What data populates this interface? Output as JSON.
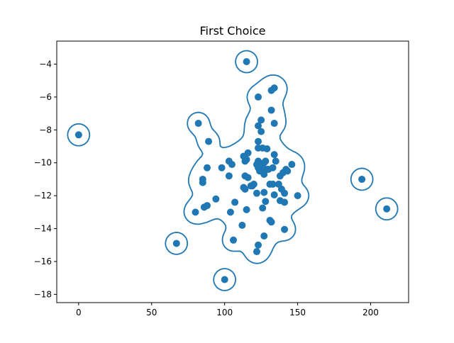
{
  "chart_data": {
    "type": "scatter",
    "title": "First Choice",
    "xlabel": "",
    "ylabel": "",
    "xlim": [
      -15,
      226
    ],
    "ylim": [
      -18.5,
      -2.6
    ],
    "x_ticks": [
      0,
      50,
      100,
      150,
      200
    ],
    "x_tick_labels": [
      "0",
      "50",
      "100",
      "150",
      "200"
    ],
    "y_ticks": [
      -18,
      -16,
      -14,
      -12,
      -10,
      -8,
      -6,
      -4
    ],
    "y_tick_labels": [
      "−18",
      "−16",
      "−14",
      "−12",
      "−10",
      "−8",
      "−6",
      "−4"
    ],
    "grid": false,
    "legend": "none",
    "colors": {
      "points": "#1f77b4",
      "contour": "#1f77b4",
      "axes": "#000000"
    },
    "series": [
      {
        "values": [
          [
            0,
            -8.3
          ],
          [
            115,
            -3.85
          ],
          [
            67,
            -14.9
          ],
          [
            100,
            -17.1
          ],
          [
            194,
            -11.0
          ],
          [
            211,
            -12.8
          ],
          [
            82,
            -7.6
          ],
          [
            89,
            -8.7
          ],
          [
            88,
            -10.3
          ],
          [
            85,
            -11.0
          ],
          [
            85,
            -11.2
          ],
          [
            86,
            -12.7
          ],
          [
            88,
            -12.6
          ],
          [
            80,
            -13.0
          ],
          [
            94,
            -12.2
          ],
          [
            98,
            -10.3
          ],
          [
            103,
            -9.9
          ],
          [
            105,
            -10.1
          ],
          [
            103,
            -10.8
          ],
          [
            104,
            -13.0
          ],
          [
            106,
            -14.7
          ],
          [
            107,
            -12.4
          ],
          [
            112,
            -13.8
          ],
          [
            113,
            -11.5
          ],
          [
            114,
            -11.6
          ],
          [
            115,
            -12.85
          ],
          [
            114,
            -10.8
          ],
          [
            116,
            -10.9
          ],
          [
            113,
            -9.6
          ],
          [
            114,
            -9.9
          ],
          [
            115,
            -9.8
          ],
          [
            116,
            -9.4
          ],
          [
            118,
            -11.4
          ],
          [
            119,
            -11.4
          ],
          [
            120,
            -11.3
          ],
          [
            122,
            -11.85
          ],
          [
            123,
            -9.9
          ],
          [
            122,
            -10.1
          ],
          [
            123,
            -10.3
          ],
          [
            125,
            -10.4
          ],
          [
            124,
            -10.5
          ],
          [
            127,
            -10.0
          ],
          [
            126,
            -10.1
          ],
          [
            127,
            -10.5
          ],
          [
            128,
            -9.9
          ],
          [
            127,
            -10.7
          ],
          [
            129,
            -10.4
          ],
          [
            130,
            -10.4
          ],
          [
            131,
            -11.3
          ],
          [
            133,
            -11.3
          ],
          [
            133,
            -10.3
          ],
          [
            135,
            -9.9
          ],
          [
            134,
            -9.5
          ],
          [
            137,
            -11.3
          ],
          [
            138,
            -10.8
          ],
          [
            140,
            -10.6
          ],
          [
            142,
            -10.4
          ],
          [
            141,
            -11.85
          ],
          [
            139,
            -11.6
          ],
          [
            143,
            -10.5
          ],
          [
            146,
            -10.1
          ],
          [
            150,
            -12.0
          ],
          [
            134,
            -11.95
          ],
          [
            138,
            -12.3
          ],
          [
            141,
            -12.4
          ],
          [
            127,
            -11.8
          ],
          [
            126,
            -12.75
          ],
          [
            128,
            -12.35
          ],
          [
            131,
            -13.5
          ],
          [
            132,
            -13.6
          ],
          [
            127,
            -14.45
          ],
          [
            123,
            -15.0
          ],
          [
            122,
            -15.4
          ],
          [
            141,
            -14.05
          ],
          [
            123,
            -6.0
          ],
          [
            125,
            -7.4
          ],
          [
            123,
            -7.75
          ],
          [
            125,
            -8.1
          ],
          [
            123,
            -8.7
          ],
          [
            123,
            -9.1
          ],
          [
            126,
            -9.1
          ],
          [
            129,
            -9.15
          ],
          [
            132,
            -6.8
          ],
          [
            134,
            -7.6
          ],
          [
            132,
            -5.6
          ],
          [
            134,
            -5.45
          ]
        ]
      }
    ]
  }
}
